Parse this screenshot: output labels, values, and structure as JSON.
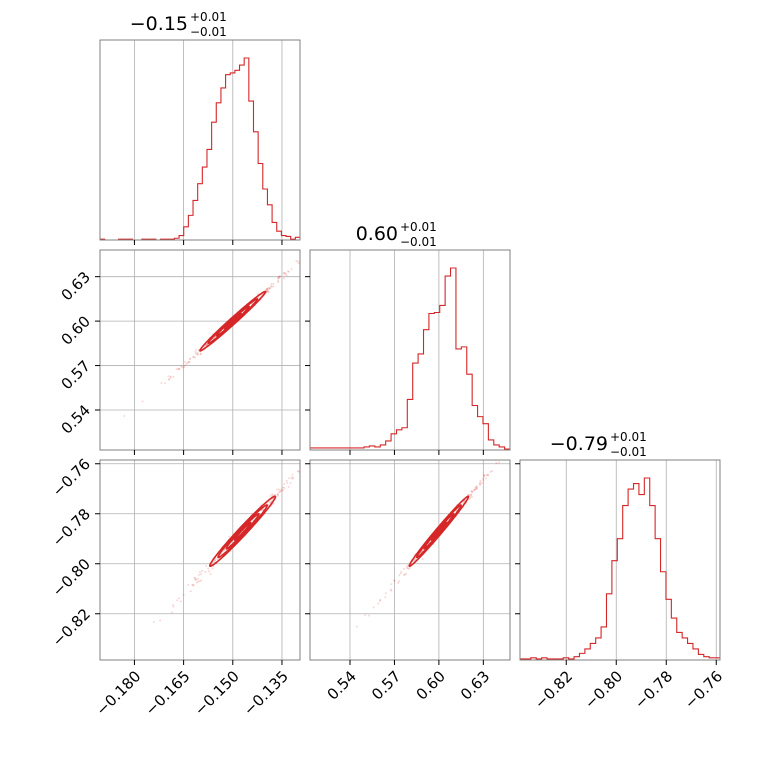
{
  "chart_data": {
    "type": "corner",
    "color": "#d62728",
    "grid": true,
    "parameters": [
      {
        "title": {
          "value": "−0.15",
          "upper": "+0.01",
          "lower": "−0.01"
        },
        "range": [
          -0.1905,
          -0.1295
        ],
        "ticks": [
          -0.18,
          -0.165,
          -0.15,
          -0.135
        ],
        "tick_labels": [
          "−0.180",
          "−0.165",
          "−0.150",
          "−0.135"
        ],
        "histogram": [
          1,
          0,
          0,
          0,
          1,
          1,
          1,
          0,
          0,
          1,
          1,
          1,
          0,
          1,
          1,
          1,
          2,
          5,
          15,
          28,
          45,
          64,
          83,
          103,
          134,
          156,
          173,
          188,
          190,
          193,
          199,
          207,
          158,
          123,
          87,
          58,
          40,
          20,
          10,
          5,
          4,
          1,
          3
        ]
      },
      {
        "title": {
          "value": "0.60",
          "upper": "+0.01",
          "lower": "−0.01"
        },
        "range": [
          0.513,
          0.648
        ],
        "ticks": [
          0.54,
          0.57,
          0.6,
          0.63
        ],
        "tick_labels": [
          "0.54",
          "0.57",
          "0.60",
          "0.63"
        ],
        "histogram": [
          2,
          2,
          2,
          2,
          2,
          2,
          2,
          2,
          2,
          2,
          3,
          4,
          3,
          5,
          9,
          16,
          20,
          22,
          50,
          86,
          95,
          119,
          135,
          136,
          143,
          172,
          180,
          100,
          102,
          75,
          44,
          33,
          26,
          10,
          5,
          3,
          1
        ]
      },
      {
        "title": {
          "value": "−0.79",
          "upper": "+0.01",
          "lower": "−0.01"
        },
        "range": [
          -0.8385,
          -0.7585
        ],
        "ticks": [
          -0.82,
          -0.8,
          -0.78,
          -0.76
        ],
        "tick_labels": [
          "−0.82",
          "−0.80",
          "−0.78",
          "−0.76"
        ],
        "histogram": [
          1,
          1,
          2,
          1,
          2,
          1,
          1,
          1,
          2,
          1,
          3,
          6,
          10,
          15,
          20,
          30,
          60,
          90,
          110,
          140,
          155,
          160,
          150,
          165,
          140,
          110,
          80,
          55,
          38,
          25,
          20,
          15,
          10,
          5,
          3,
          2,
          2
        ]
      }
    ],
    "correlations": [
      {
        "x_param": 0,
        "y_param": 1,
        "center": [
          -0.15,
          0.6
        ],
        "sd": [
          0.005,
          0.01
        ],
        "rho": 0.99
      },
      {
        "x_param": 0,
        "y_param": 2,
        "center": [
          -0.147,
          -0.787
        ],
        "sd": [
          0.005,
          0.007
        ],
        "rho": 0.985
      },
      {
        "x_param": 1,
        "y_param": 2,
        "center": [
          0.6,
          -0.787
        ],
        "sd": [
          0.01,
          0.007
        ],
        "rho": 0.99
      }
    ]
  }
}
